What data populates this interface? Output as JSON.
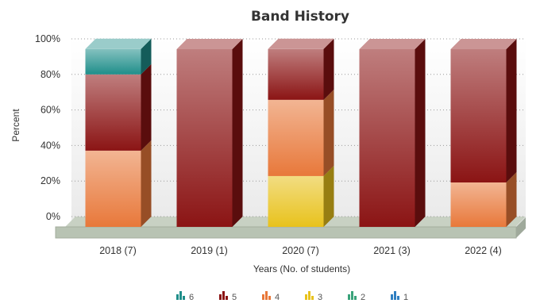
{
  "chart_data": {
    "type": "bar",
    "stacked": true,
    "three_d": true,
    "title": "Band History",
    "xlabel": "Years (No. of students)",
    "ylabel": "Percent",
    "ylim": [
      0,
      100
    ],
    "yticks": [
      "0%",
      "20%",
      "40%",
      "60%",
      "80%",
      "100%"
    ],
    "grid": true,
    "legend_position": "bottom",
    "categories": [
      "2018 (7)",
      "2019 (1)",
      "2020 (7)",
      "2021 (3)",
      "2022 (4)"
    ],
    "series": [
      {
        "name": "1",
        "color": "#2f7fc1",
        "values": [
          0,
          0,
          0,
          0,
          0
        ]
      },
      {
        "name": "2",
        "color": "#3aa37a",
        "values": [
          0,
          0,
          0,
          0,
          0
        ]
      },
      {
        "name": "3",
        "color": "#e8c21c",
        "values": [
          0,
          0,
          28.6,
          0,
          0
        ]
      },
      {
        "name": "4",
        "color": "#e8783a",
        "values": [
          42.9,
          0,
          42.9,
          0,
          25
        ]
      },
      {
        "name": "5",
        "color": "#8b1414",
        "values": [
          42.9,
          100,
          28.6,
          100,
          75
        ]
      },
      {
        "name": "6",
        "color": "#1f8e8a",
        "values": [
          14.3,
          0,
          0,
          0,
          0
        ]
      }
    ],
    "legend_order": [
      "6",
      "5",
      "4",
      "3",
      "2",
      "1"
    ]
  }
}
